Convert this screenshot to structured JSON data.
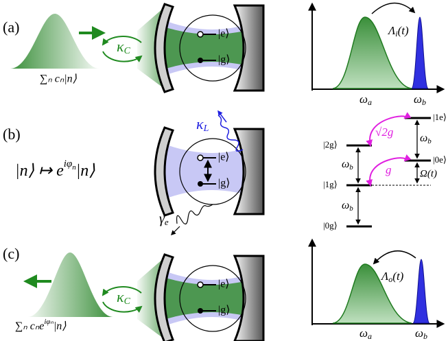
{
  "panel_a": {
    "label": "(a)",
    "input_state": "∑ₙ cₙ|n⟩",
    "coupling": {
      "symbol": "κ",
      "sub": "C"
    },
    "atom": {
      "excited": "|e⟩",
      "ground": "|g⟩"
    },
    "spectrum": {
      "transfer": {
        "symbol": "Λ",
        "sub": "i",
        "suffix": "(t)"
      },
      "atom_freq": {
        "symbol": "ω",
        "sub": "a"
      },
      "photon_freq": {
        "symbol": "ω",
        "sub": "b"
      }
    }
  },
  "panel_b": {
    "label": "(b)",
    "mapping": {
      "left": "|n⟩ ↦ e",
      "sup": "iφ",
      "sup_sub": "n",
      "right": "|n⟩"
    },
    "cavity_loss": {
      "symbol": "κ",
      "sub": "L"
    },
    "atom": {
      "excited": "|e⟩",
      "ground": "|g⟩"
    },
    "decay": {
      "symbol": "γ",
      "sub": "e"
    },
    "levels": {
      "l1e": "|1e⟩",
      "l2g": "|2g⟩",
      "l0e": "|0e⟩",
      "l1g": "|1g⟩",
      "l0g": "|0g⟩"
    },
    "couplings": {
      "sqrt2g": "√2g",
      "g": "g",
      "drive": "Ω(t)"
    },
    "spacings": [
      {
        "symbol": "ω",
        "sub": "b"
      },
      {
        "symbol": "ω",
        "sub": "b"
      },
      {
        "symbol": "ω",
        "sub": "b"
      }
    ]
  },
  "panel_c": {
    "label": "(c)",
    "output_state": {
      "prefix": "∑ₙ cₙe",
      "sup": "iφₙ",
      "suffix": "|n⟩"
    },
    "coupling": {
      "symbol": "κ",
      "sub": "C"
    },
    "atom": {
      "excited": "|e⟩",
      "ground": "|g⟩"
    },
    "spectrum": {
      "transfer": {
        "symbol": "Λ",
        "sub": "o",
        "suffix": "(t)"
      },
      "atom_freq": {
        "symbol": "ω",
        "sub": "a"
      },
      "photon_freq": {
        "symbol": "ω",
        "sub": "b"
      }
    }
  }
}
